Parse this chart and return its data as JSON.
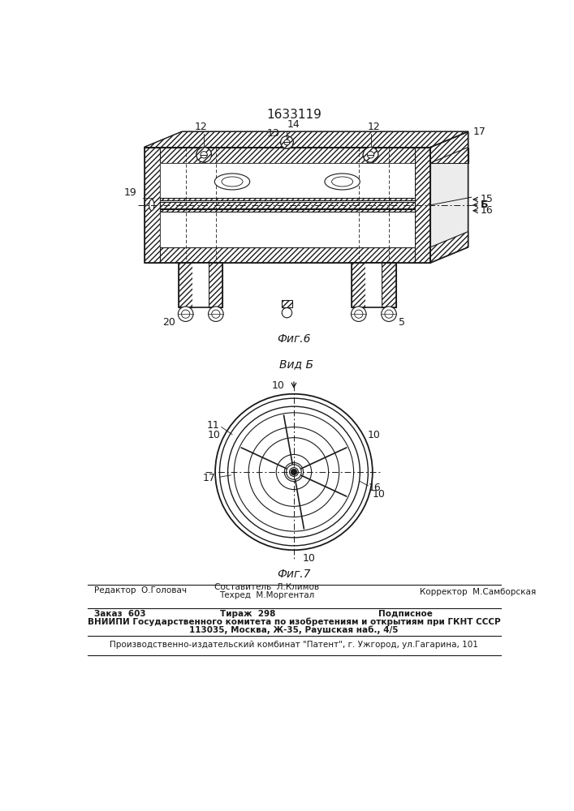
{
  "title": "1633119",
  "fig6_label": "Фиг.6",
  "fig7_label": "Фиг.7",
  "vid_label": "Вид Б",
  "bg_color": "#ffffff",
  "line_color": "#1a1a1a",
  "footer_line1_left": "Редактор  О.Головач",
  "footer_line1_center_top": "Составитель  Л.Климов",
  "footer_line1_center_bot": "Техред  М.Моргентал",
  "footer_line1_right": "Корректор  М.Самборская",
  "footer_line2_left": "Заказ  603",
  "footer_line2_center": "Тираж  298",
  "footer_line2_right": "Подписное",
  "footer_line3": "ВНИИПИ Государственного комитета по изобретениям и открытиям при ГКНТ СССР",
  "footer_line4": "113035, Москва, Ж-35, Раушская наб., 4/5",
  "footer_line5": "Производственно-издательский комбинат \"Патент\", г. Ужгород, ул.Гагарина, 101"
}
